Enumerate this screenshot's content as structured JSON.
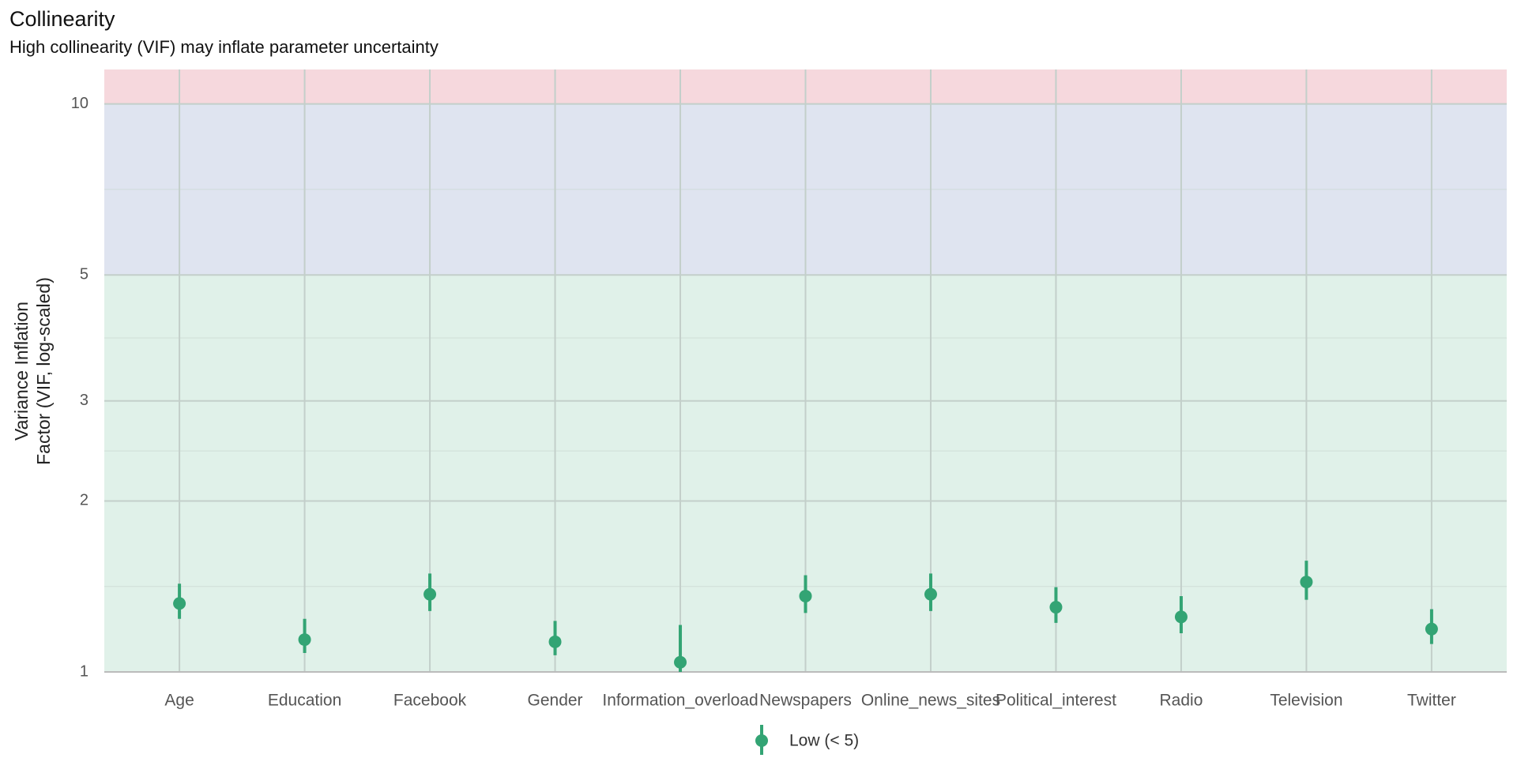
{
  "chart_data": {
    "type": "pointrange",
    "title": "Collinearity",
    "subtitle": "High collinearity (VIF) may inflate parameter uncertainty",
    "ylabel": [
      "Variance Inflation",
      "Factor (VIF, log-scaled)"
    ],
    "log_y": true,
    "grid": true,
    "legend": "bottom",
    "categories": [
      "Age",
      "Education",
      "Facebook",
      "Gender",
      "Information_overload",
      "Newspapers",
      "Online_news_sites",
      "Political_interest",
      "Radio",
      "Television",
      "Twitter"
    ],
    "series": [
      {
        "name": "Low (< 5)",
        "color": "#33a474",
        "values": [
          1.32,
          1.14,
          1.37,
          1.13,
          1.04,
          1.36,
          1.37,
          1.3,
          1.25,
          1.44,
          1.19
        ],
        "ci_low": [
          1.24,
          1.08,
          1.28,
          1.07,
          1.0,
          1.27,
          1.28,
          1.22,
          1.17,
          1.34,
          1.12
        ],
        "ci_high": [
          1.43,
          1.24,
          1.49,
          1.23,
          1.21,
          1.48,
          1.49,
          1.41,
          1.36,
          1.57,
          1.29
        ]
      }
    ],
    "bands": [
      {
        "from": 1,
        "to": 5,
        "color": "#e0f1e9"
      },
      {
        "from": 5,
        "to": 10,
        "color": "#dfe4f0"
      },
      {
        "from": 10,
        "to": 11.5,
        "color": "#f6d8dd"
      }
    ],
    "ylim": [
      1,
      11.5
    ],
    "yticks": [
      1,
      2,
      3,
      5,
      10
    ]
  }
}
